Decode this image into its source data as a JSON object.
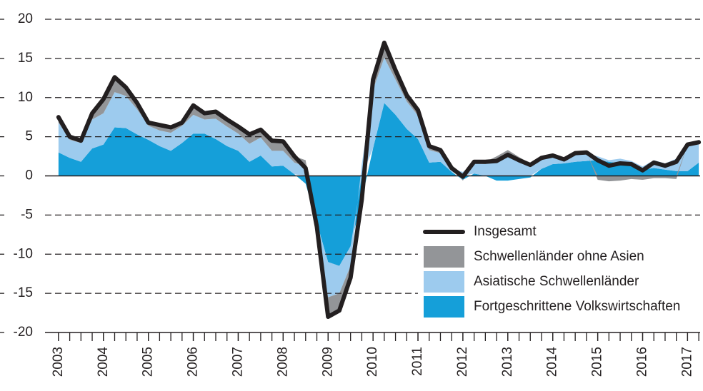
{
  "chart_data": {
    "type": "stacked-area-line",
    "x": [
      2003,
      2003.25,
      2003.5,
      2003.75,
      2004,
      2004.25,
      2004.5,
      2004.75,
      2005,
      2005.25,
      2005.5,
      2005.75,
      2006,
      2006.25,
      2006.5,
      2006.75,
      2007,
      2007.25,
      2007.5,
      2007.75,
      2008,
      2008.25,
      2008.5,
      2008.75,
      2009,
      2009.25,
      2009.5,
      2009.75,
      2010,
      2010.25,
      2010.5,
      2010.75,
      2011,
      2011.25,
      2011.5,
      2011.75,
      2012,
      2012.25,
      2012.5,
      2012.75,
      2013,
      2013.25,
      2013.5,
      2013.75,
      2014,
      2014.25,
      2014.5,
      2014.75,
      2015,
      2015.25,
      2015.5,
      2015.75,
      2016,
      2016.25,
      2016.5,
      2016.75,
      2017,
      2017.25
    ],
    "series": [
      {
        "name": "Insgesamt",
        "kind": "line",
        "color": "#231f20",
        "values": [
          7.5,
          5.0,
          4.5,
          8.0,
          9.8,
          12.6,
          11.3,
          9.3,
          6.8,
          6.5,
          6.2,
          6.8,
          9.0,
          8.0,
          8.2,
          7.2,
          6.3,
          5.3,
          5.9,
          4.5,
          4.4,
          2.5,
          1.0,
          -6.5,
          -18.0,
          -17.2,
          -13.0,
          -3.0,
          12.3,
          17.0,
          13.5,
          10.3,
          8.4,
          3.8,
          3.3,
          1.0,
          -0.1,
          1.8,
          1.8,
          1.9,
          2.7,
          2.0,
          1.4,
          2.3,
          2.6,
          2.1,
          2.9,
          3.0,
          2.0,
          1.3,
          1.6,
          1.5,
          0.7,
          1.7,
          1.3,
          1.8,
          4.0,
          4.3
        ]
      },
      {
        "name": "Schwellenländer ohne Asien",
        "kind": "area",
        "color": "#939598",
        "values": [
          0.7,
          0.4,
          0.3,
          0.8,
          1.8,
          1.9,
          1.1,
          0.8,
          0.4,
          0.7,
          0.7,
          0.4,
          1.2,
          0.8,
          0.9,
          0.9,
          0.9,
          1.2,
          1.0,
          1.3,
          1.2,
          0.8,
          0.8,
          -0.2,
          -2.5,
          -2.2,
          -1.5,
          -1.5,
          1.3,
          1.9,
          1.2,
          0.8,
          0.7,
          0.5,
          0.4,
          0.1,
          -0.1,
          0.2,
          0.3,
          0.4,
          0.5,
          0.3,
          0.2,
          0.2,
          0.2,
          0.1,
          0.1,
          0.1,
          -0.5,
          -0.7,
          -0.6,
          -0.4,
          -0.5,
          -0.3,
          -0.3,
          -0.4,
          0.0,
          0.2
        ]
      },
      {
        "name": "Asiatische Schwellenländer",
        "kind": "area",
        "color": "#9dcbee",
        "values": [
          3.8,
          2.3,
          2.4,
          3.7,
          4.0,
          4.5,
          4.1,
          3.2,
          1.8,
          2.0,
          2.3,
          2.2,
          2.4,
          1.8,
          2.6,
          2.5,
          2.2,
          2.3,
          2.3,
          2.0,
          1.9,
          1.5,
          1.2,
          -0.3,
          -4.5,
          -3.5,
          -2.5,
          1.5,
          7.5,
          5.8,
          4.5,
          3.5,
          3.0,
          1.6,
          1.1,
          0.4,
          0.5,
          1.3,
          1.5,
          2.1,
          2.8,
          2.1,
          1.4,
          1.2,
          0.9,
          0.4,
          1.0,
          1.0,
          0.5,
          0.2,
          0.6,
          0.5,
          0.4,
          1.0,
          0.8,
          1.6,
          3.4,
          2.4
        ]
      },
      {
        "name": "Fortgeschrittene Volkswirtschaften",
        "kind": "area",
        "color": "#159fd9",
        "values": [
          3.0,
          2.3,
          1.8,
          3.5,
          4.0,
          6.2,
          6.1,
          5.3,
          4.6,
          3.8,
          3.2,
          4.2,
          5.4,
          5.4,
          4.7,
          3.8,
          3.2,
          1.8,
          2.6,
          1.2,
          1.3,
          0.2,
          -1.0,
          -6.0,
          -11.0,
          -11.5,
          -9.0,
          -3.0,
          3.5,
          9.3,
          7.8,
          6.0,
          4.7,
          1.7,
          1.8,
          0.5,
          -0.5,
          0.3,
          0.0,
          -0.6,
          -0.6,
          -0.4,
          -0.2,
          0.9,
          1.5,
          1.6,
          1.8,
          1.9,
          2.0,
          1.8,
          1.6,
          1.4,
          0.8,
          1.0,
          0.8,
          0.6,
          0.6,
          1.7
        ]
      }
    ],
    "xlim": [
      2002.7,
      2017.28
    ],
    "xticks": [
      2003,
      2004,
      2005,
      2006,
      2007,
      2008,
      2009,
      2010,
      2011,
      2012,
      2013,
      2014,
      2015,
      2016,
      2017
    ],
    "ylim": [
      -20,
      20
    ],
    "yticks": [
      -20,
      -15,
      -10,
      -5,
      0,
      5,
      10,
      15,
      20
    ],
    "grid": true,
    "legend": "lower-right"
  }
}
